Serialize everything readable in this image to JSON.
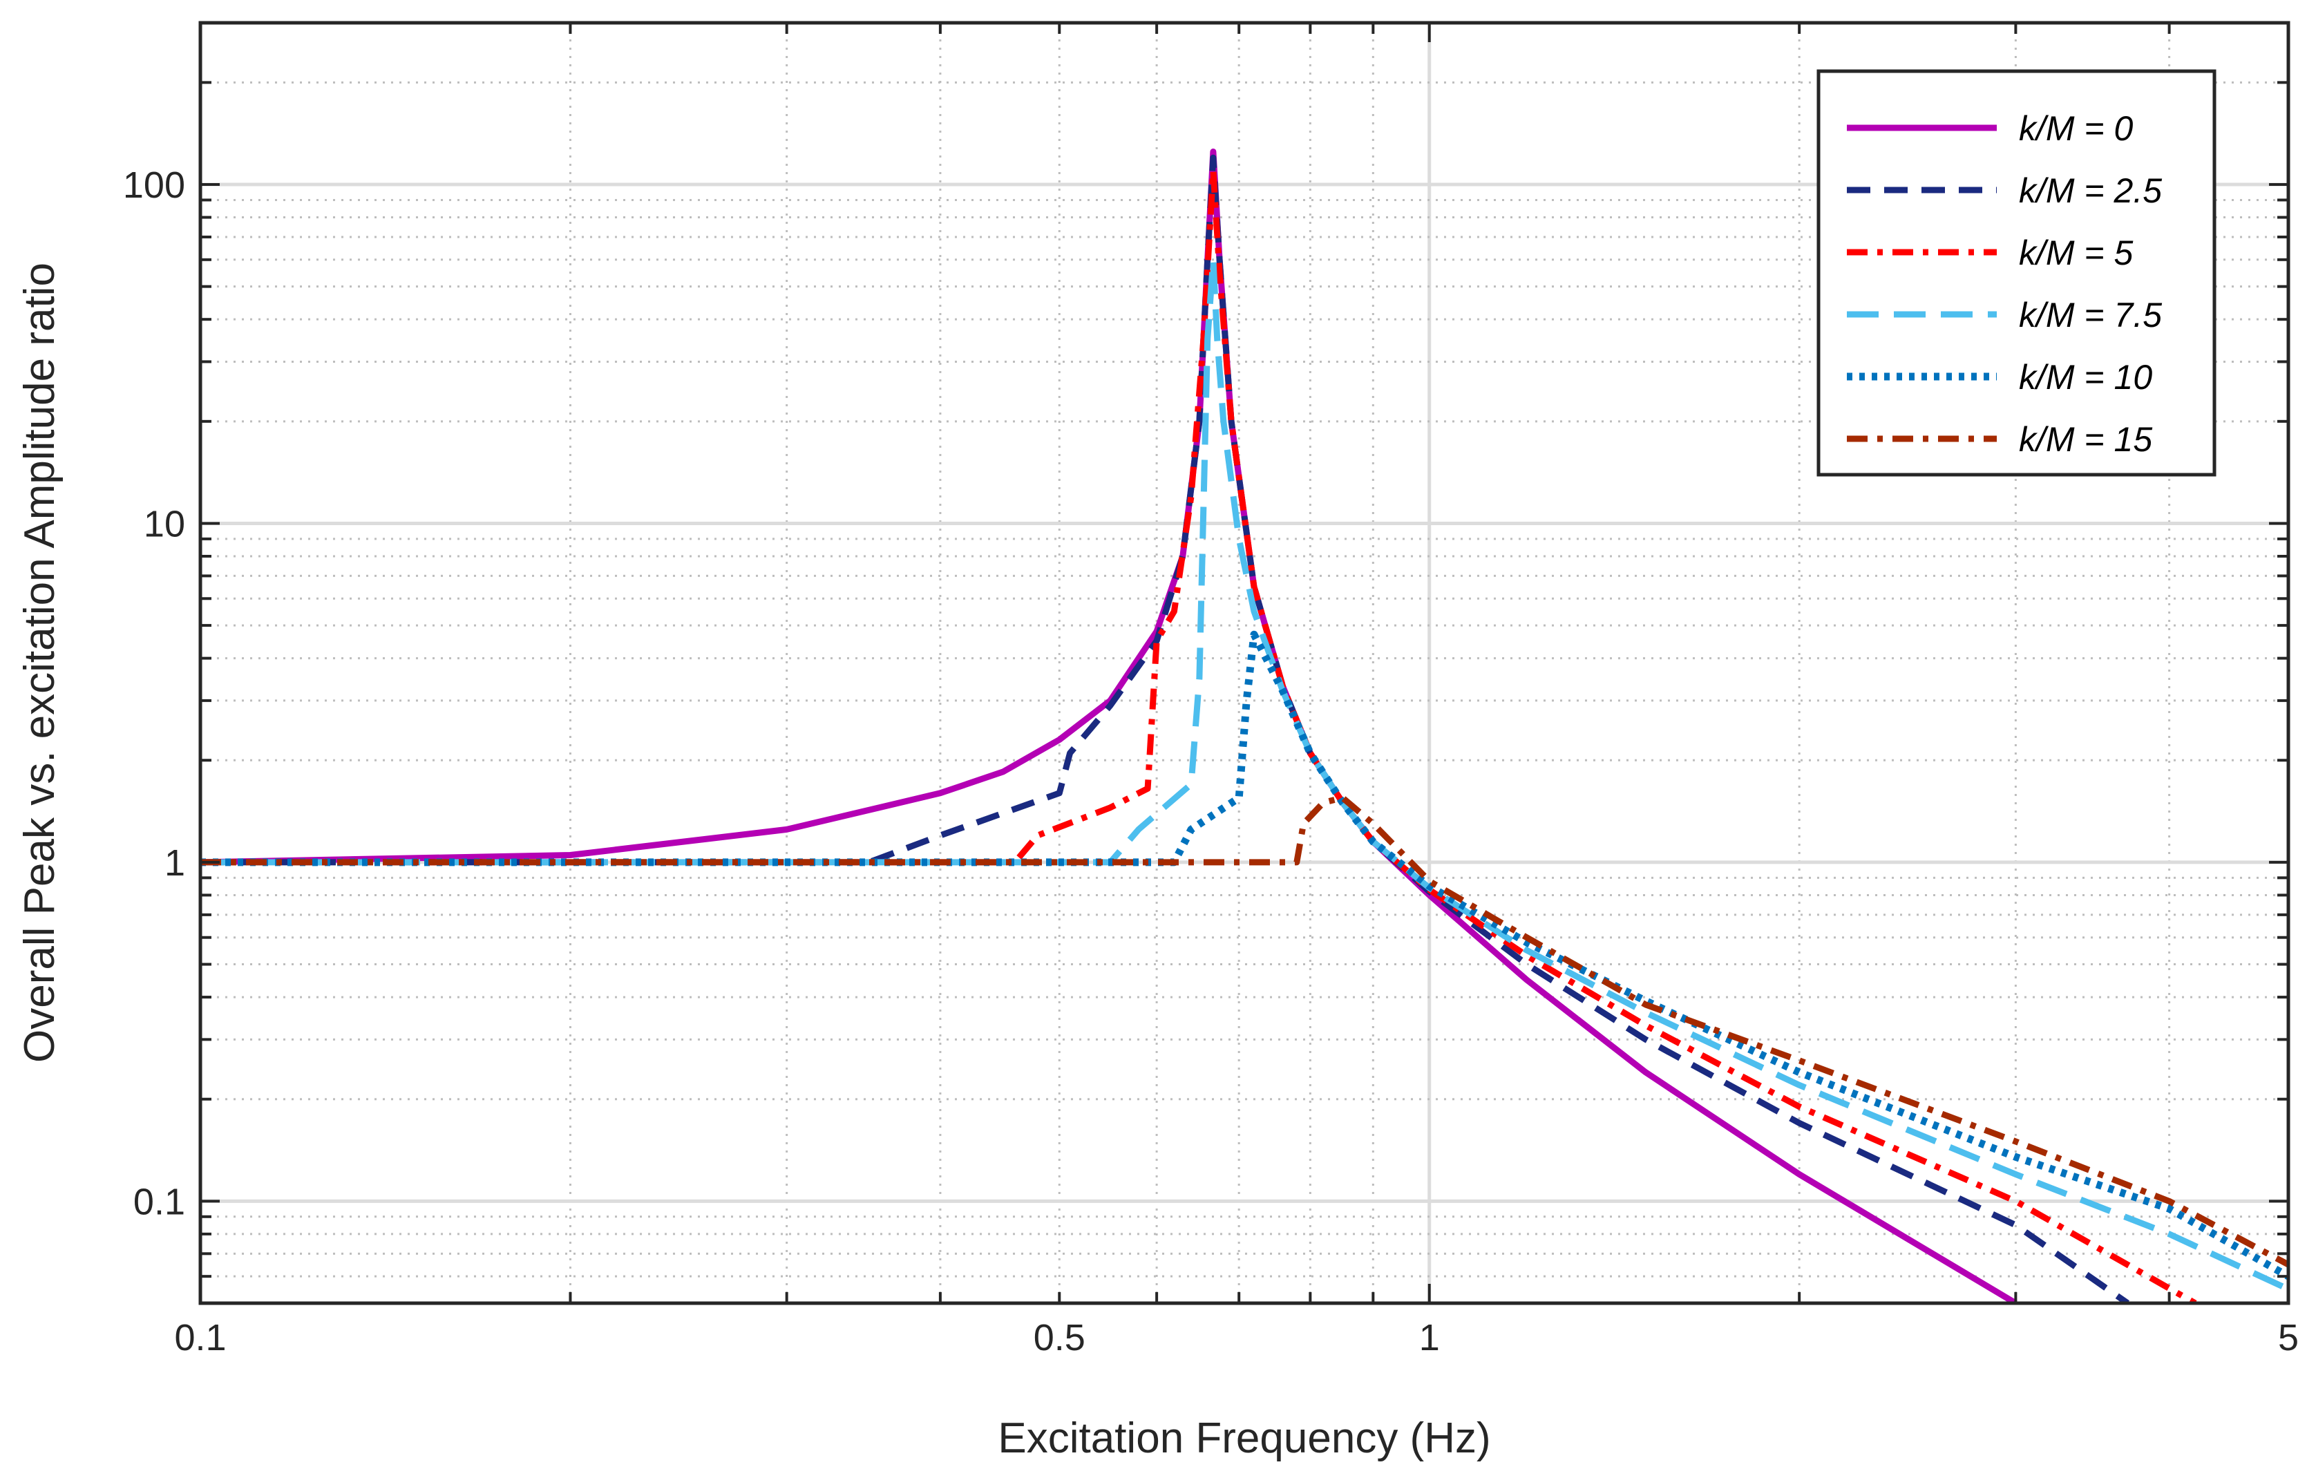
{
  "chart_data": {
    "type": "line",
    "title": "",
    "xlabel": "Excitation Frequency (Hz)",
    "ylabel": "Overall Peak vs. excitation Amplitude ratio",
    "xscale": "log",
    "yscale": "log",
    "xlim": [
      0.1,
      5
    ],
    "ylim": [
      0.05,
      300
    ],
    "grid": true,
    "legend_position": "top-right",
    "x_ticks": [
      {
        "value": 0.1,
        "label": "0.1"
      },
      {
        "value": 0.5,
        "label": "0.5"
      },
      {
        "value": 1,
        "label": "1"
      },
      {
        "value": 5,
        "label": "5"
      }
    ],
    "y_ticks": [
      {
        "value": 0.1,
        "label": "0.1"
      },
      {
        "value": 1,
        "label": "1"
      },
      {
        "value": 10,
        "label": "10"
      },
      {
        "value": 100,
        "label": "100"
      }
    ],
    "series": [
      {
        "name": "k/M = 0",
        "color": "#b400b4",
        "dash": "solid",
        "points": [
          [
            0.1,
            1.0
          ],
          [
            0.2,
            1.05
          ],
          [
            0.3,
            1.25
          ],
          [
            0.4,
            1.6
          ],
          [
            0.45,
            1.85
          ],
          [
            0.5,
            2.3
          ],
          [
            0.55,
            3.0
          ],
          [
            0.6,
            4.8
          ],
          [
            0.63,
            8.0
          ],
          [
            0.65,
            20
          ],
          [
            0.66,
            60
          ],
          [
            0.667,
            125
          ],
          [
            0.675,
            60
          ],
          [
            0.69,
            20
          ],
          [
            0.72,
            6.5
          ],
          [
            0.76,
            3.3
          ],
          [
            0.8,
            2.1
          ],
          [
            0.85,
            1.5
          ],
          [
            0.9,
            1.15
          ],
          [
            1.0,
            0.8
          ],
          [
            1.2,
            0.45
          ],
          [
            1.5,
            0.24
          ],
          [
            2.0,
            0.12
          ],
          [
            3.0,
            0.05
          ]
        ]
      },
      {
        "name": "k/M = 2.5",
        "color": "#1a2a80",
        "dash": "dash",
        "points": [
          [
            0.1,
            1.0
          ],
          [
            0.35,
            1.0
          ],
          [
            0.4,
            1.2
          ],
          [
            0.5,
            1.6
          ],
          [
            0.51,
            2.1
          ],
          [
            0.55,
            2.9
          ],
          [
            0.6,
            4.5
          ],
          [
            0.63,
            8.0
          ],
          [
            0.65,
            20
          ],
          [
            0.66,
            60
          ],
          [
            0.667,
            120
          ],
          [
            0.675,
            60
          ],
          [
            0.69,
            20
          ],
          [
            0.72,
            6.5
          ],
          [
            0.76,
            3.3
          ],
          [
            0.8,
            2.1
          ],
          [
            0.85,
            1.5
          ],
          [
            0.9,
            1.15
          ],
          [
            1.0,
            0.82
          ],
          [
            1.2,
            0.5
          ],
          [
            1.5,
            0.3
          ],
          [
            2.0,
            0.17
          ],
          [
            3.0,
            0.085
          ],
          [
            3.7,
            0.05
          ]
        ]
      },
      {
        "name": "k/M = 5",
        "color": "#ff0000",
        "dash": "dashdot",
        "points": [
          [
            0.1,
            1.0
          ],
          [
            0.46,
            1.0
          ],
          [
            0.48,
            1.2
          ],
          [
            0.55,
            1.45
          ],
          [
            0.59,
            1.65
          ],
          [
            0.6,
            4.5
          ],
          [
            0.62,
            5.5
          ],
          [
            0.64,
            12
          ],
          [
            0.655,
            35
          ],
          [
            0.667,
            110
          ],
          [
            0.675,
            55
          ],
          [
            0.69,
            20
          ],
          [
            0.72,
            6.5
          ],
          [
            0.76,
            3.3
          ],
          [
            0.8,
            2.1
          ],
          [
            0.85,
            1.5
          ],
          [
            0.9,
            1.15
          ],
          [
            1.0,
            0.83
          ],
          [
            1.2,
            0.53
          ],
          [
            1.5,
            0.33
          ],
          [
            2.0,
            0.19
          ],
          [
            3.0,
            0.1
          ],
          [
            4.2,
            0.05
          ]
        ]
      },
      {
        "name": "k/M = 7.5",
        "color": "#4dbeee",
        "dash": "longdash",
        "points": [
          [
            0.1,
            1.0
          ],
          [
            0.55,
            1.0
          ],
          [
            0.58,
            1.25
          ],
          [
            0.64,
            1.7
          ],
          [
            0.65,
            3.5
          ],
          [
            0.66,
            35
          ],
          [
            0.667,
            60
          ],
          [
            0.672,
            35
          ],
          [
            0.68,
            20
          ],
          [
            0.7,
            9
          ],
          [
            0.72,
            5.5
          ],
          [
            0.76,
            3.2
          ],
          [
            0.8,
            2.1
          ],
          [
            0.85,
            1.5
          ],
          [
            0.9,
            1.15
          ],
          [
            1.0,
            0.84
          ],
          [
            1.2,
            0.55
          ],
          [
            1.5,
            0.36
          ],
          [
            2.0,
            0.22
          ],
          [
            3.0,
            0.12
          ],
          [
            4.0,
            0.08
          ],
          [
            5.0,
            0.055
          ]
        ]
      },
      {
        "name": "k/M = 10",
        "color": "#0072bd",
        "dash": "dot",
        "points": [
          [
            0.1,
            1.0
          ],
          [
            0.62,
            1.0
          ],
          [
            0.64,
            1.25
          ],
          [
            0.7,
            1.55
          ],
          [
            0.71,
            3.0
          ],
          [
            0.72,
            4.7
          ],
          [
            0.76,
            3.2
          ],
          [
            0.8,
            2.1
          ],
          [
            0.85,
            1.5
          ],
          [
            0.9,
            1.15
          ],
          [
            1.0,
            0.85
          ],
          [
            1.2,
            0.58
          ],
          [
            1.5,
            0.39
          ],
          [
            2.0,
            0.24
          ],
          [
            3.0,
            0.135
          ],
          [
            4.0,
            0.095
          ],
          [
            5.0,
            0.06
          ]
        ]
      },
      {
        "name": "k/M = 15",
        "color": "#a52a00",
        "dash": "dashdot",
        "points": [
          [
            0.1,
            1.0
          ],
          [
            0.78,
            1.0
          ],
          [
            0.79,
            1.3
          ],
          [
            0.82,
            1.5
          ],
          [
            0.85,
            1.55
          ],
          [
            0.9,
            1.3
          ],
          [
            1.0,
            0.88
          ],
          [
            1.2,
            0.6
          ],
          [
            1.5,
            0.38
          ],
          [
            2.0,
            0.26
          ],
          [
            3.0,
            0.15
          ],
          [
            4.0,
            0.1
          ],
          [
            5.0,
            0.065
          ]
        ]
      }
    ]
  }
}
